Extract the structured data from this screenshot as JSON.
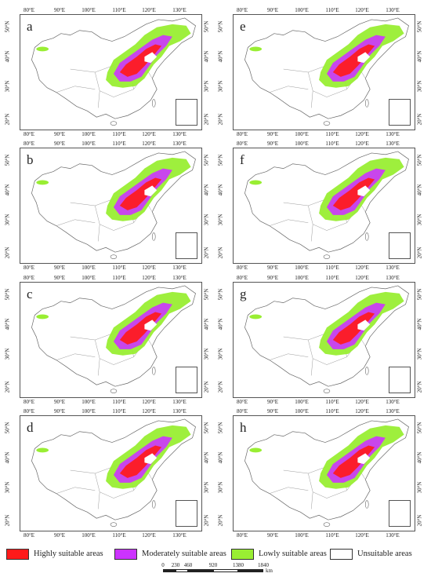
{
  "panels": [
    {
      "label": "a"
    },
    {
      "label": "e"
    },
    {
      "label": "b"
    },
    {
      "label": "f"
    },
    {
      "label": "c"
    },
    {
      "label": "g"
    },
    {
      "label": "d"
    },
    {
      "label": "h"
    }
  ],
  "axes": {
    "x_ticks": [
      "80°E",
      "90°E",
      "100°E",
      "110°E",
      "120°E",
      "130°E"
    ],
    "y_ticks": [
      "50°N",
      "40°N",
      "30°N",
      "20°N"
    ]
  },
  "legend": {
    "items": [
      {
        "label": "Highly suitable areas",
        "color": "#ff1a1a"
      },
      {
        "label": "Moderately suitable areas",
        "color": "#cc33ff"
      },
      {
        "label": "Lowly suitable areas",
        "color": "#99ee33"
      },
      {
        "label": "Unsuitable areas",
        "color": "#ffffff"
      }
    ]
  },
  "scale": {
    "ticks": [
      "0",
      "230",
      "460",
      "920",
      "1380",
      "1840"
    ],
    "unit": "km"
  },
  "colors": {
    "high": "#ff1a1a",
    "moderate": "#cc33ff",
    "low": "#99ee33",
    "border": "#666666"
  }
}
